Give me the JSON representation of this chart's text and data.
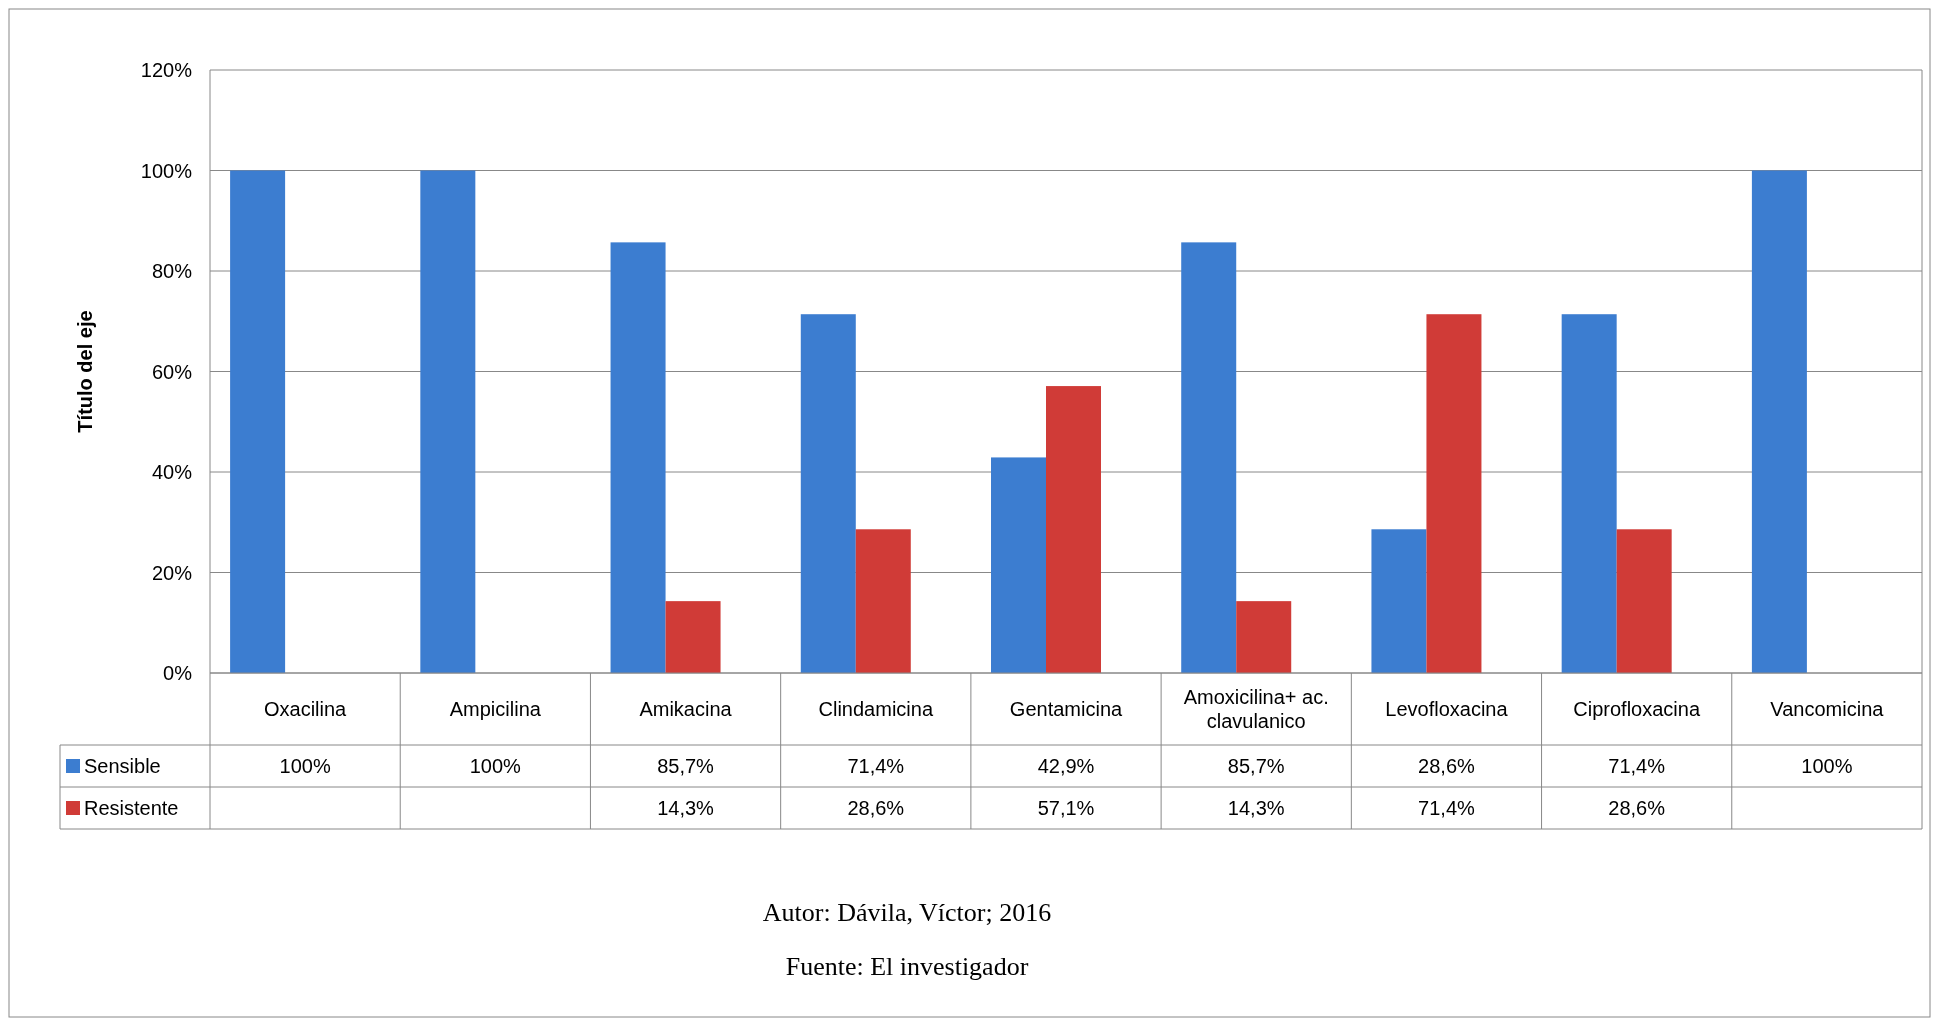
{
  "chart_data": {
    "type": "bar",
    "ylabel": "Título del eje",
    "categories": [
      "Oxacilina",
      "Ampicilina",
      "Amikacina",
      "Clindamicina",
      "Gentamicina",
      "Amoxicilina+ ac. clavulanico",
      "Levofloxacina",
      "Ciprofloxacina",
      "Vancomicina"
    ],
    "series": [
      {
        "name": "Sensible",
        "color": "#3c7dd0",
        "values": [
          100,
          100,
          85.7,
          71.4,
          42.9,
          85.7,
          28.6,
          71.4,
          100
        ],
        "value_labels": [
          "100%",
          "100%",
          "85,7%",
          "71,4%",
          "42,9%",
          "85,7%",
          "28,6%",
          "71,4%",
          "100%"
        ]
      },
      {
        "name": "Resistente",
        "color": "#d03b37",
        "values": [
          null,
          null,
          14.3,
          28.6,
          57.1,
          14.3,
          71.4,
          28.6,
          null
        ],
        "value_labels": [
          null,
          null,
          "14,3%",
          "28,6%",
          "57,1%",
          "14,3%",
          "71,4%",
          "28,6%",
          null
        ]
      }
    ],
    "ylim": [
      0,
      120
    ],
    "yticks": [
      {
        "value": 0,
        "label": "0%"
      },
      {
        "value": 20,
        "label": "20%"
      },
      {
        "value": 40,
        "label": "40%"
      },
      {
        "value": 60,
        "label": "60%"
      },
      {
        "value": 80,
        "label": "80%"
      },
      {
        "value": 100,
        "label": "100%"
      },
      {
        "value": 120,
        "label": "120%"
      }
    ],
    "grid": "y",
    "legend": "bottom",
    "annotations": [
      "Autor: Dávila, Víctor; 2016",
      "Fuente: El investigador"
    ]
  }
}
